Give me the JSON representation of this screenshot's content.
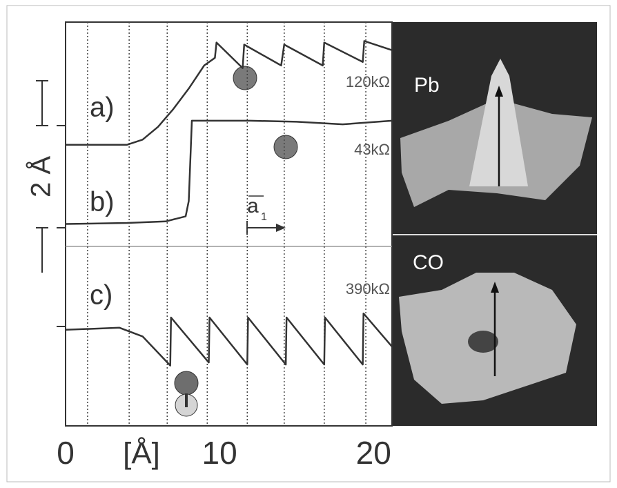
{
  "chart_data": {
    "type": "line",
    "x_label": "[Å]",
    "scale_label": "2 Å",
    "vector_label": "a",
    "vector_subscript": "1",
    "panels": [
      "Pb",
      "CO"
    ],
    "xlim": [
      0,
      21.2
    ],
    "ylim": [
      0,
      7.9
    ],
    "xticks": [
      0,
      10,
      20
    ],
    "vlines": [
      1.43,
      4.13,
      6.6,
      9.2,
      11.8,
      14.2,
      16.8,
      19.5
    ],
    "series": [
      {
        "name": "a)",
        "resistance": "120kΩ",
        "color": "#333333",
        "x": [
          0,
          2,
          4,
          5,
          6,
          7,
          8,
          9,
          9.7,
          9.8,
          11.5,
          11.6,
          14,
          14.2,
          16.7,
          16.8,
          19.3,
          19.4,
          21.2
        ],
        "values": [
          5.5,
          5.5,
          5.5,
          5.6,
          5.85,
          6.2,
          6.6,
          7.05,
          7.2,
          7.5,
          7.0,
          7.46,
          7.05,
          7.46,
          7.05,
          7.5,
          7.12,
          7.53,
          7.35
        ]
      },
      {
        "name": "b)",
        "resistance": "43kΩ",
        "color": "#333333",
        "x": [
          0,
          4,
          6.5,
          7.8,
          8.0,
          8.2,
          12,
          15,
          18,
          21.2
        ],
        "values": [
          3.95,
          3.97,
          4.0,
          4.1,
          4.4,
          5.97,
          5.97,
          5.95,
          5.9,
          5.97
        ]
      },
      {
        "name": "c)",
        "resistance": "390kΩ",
        "color": "#333333",
        "x": [
          0,
          3.5,
          5,
          6.8,
          6.85,
          9.3,
          9.35,
          11.8,
          11.85,
          14.3,
          14.35,
          16.8,
          16.85,
          19.3,
          19.35,
          21.2
        ],
        "values": [
          1.88,
          1.92,
          1.75,
          1.18,
          2.12,
          1.24,
          2.12,
          1.2,
          2.12,
          1.2,
          2.12,
          1.2,
          2.12,
          1.2,
          2.2,
          1.55
        ]
      }
    ]
  }
}
